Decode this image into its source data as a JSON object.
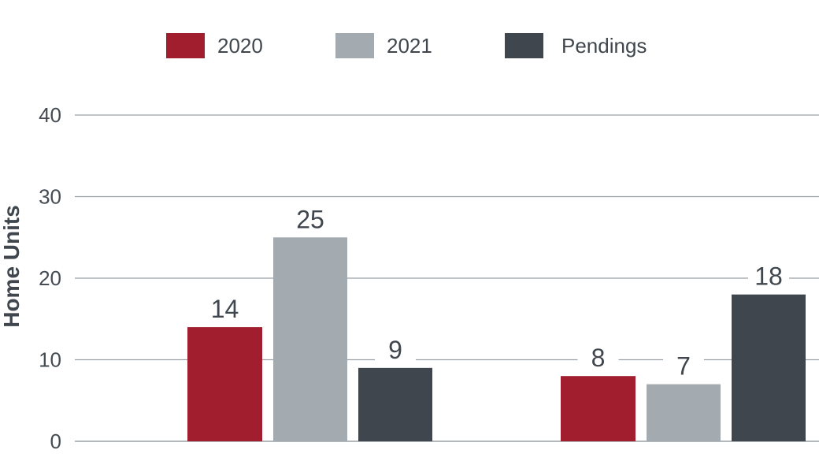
{
  "chart_data": {
    "type": "bar",
    "title": "",
    "xlabel": "",
    "ylabel": "Home Units",
    "categories": [
      "",
      ""
    ],
    "series": [
      {
        "name": "2020",
        "values": [
          14,
          8
        ],
        "color": "#a01e2e"
      },
      {
        "name": "2021",
        "values": [
          25,
          7
        ],
        "color": "#a3abb1"
      },
      {
        "name": "Pendings",
        "values": [
          9,
          18
        ],
        "color": "#40464d"
      }
    ],
    "ylim": [
      0,
      40
    ],
    "yticks": [
      0,
      10,
      20,
      30,
      40
    ],
    "grid": true,
    "legend": "top-center",
    "gridline_color": "#9aa0a5"
  }
}
